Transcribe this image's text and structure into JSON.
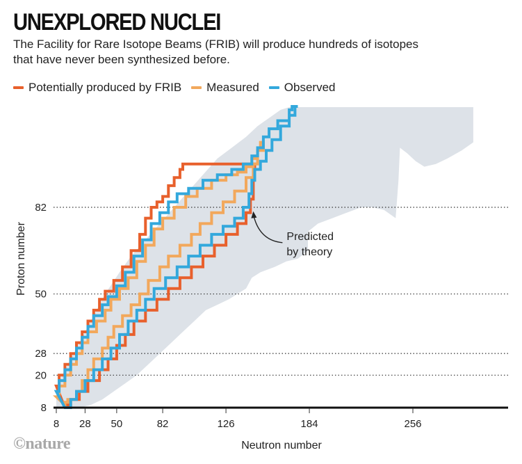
{
  "header": {
    "title": "UNEXPLORED NUCLEI",
    "subtitle": "The Facility for Rare Isotope Beams (FRIB) will produce hundreds of isotopes that have never been synthesized before."
  },
  "credit": "©nature",
  "colors": {
    "frib": "#e8602c",
    "measured": "#f2a85c",
    "observed": "#33a8dc",
    "predicted": "#dde2e8",
    "axis": "#111111",
    "gridline": "#333333",
    "annotation": "#222222"
  },
  "chart_data": {
    "type": "area",
    "title": "UNEXPLORED NUCLEI",
    "subtitle": "The Facility for Rare Isotope Beams (FRIB) will produce hundreds of isotopes that have never been synthesized before.",
    "xlabel": "Neutron number",
    "ylabel": "Proton number",
    "xlim": [
      0,
      310
    ],
    "ylim": [
      8,
      119
    ],
    "x_ticks": [
      8,
      28,
      50,
      82,
      126,
      184,
      256
    ],
    "y_ticks": [
      8,
      20,
      28,
      50,
      82
    ],
    "y_gridlines": [
      20,
      28,
      50,
      82
    ],
    "grid": "dotted horizontal at magic proton numbers",
    "legend": {
      "placement": "top-left",
      "entries": [
        {
          "key": "frib",
          "label": "Potentially produced by FRIB"
        },
        {
          "key": "measured",
          "label": "Measured"
        },
        {
          "key": "observed",
          "label": "Observed"
        }
      ]
    },
    "annotation": {
      "text_line1": "Predicted",
      "text_line2": "by theory",
      "points_to": [
        145,
        80
      ]
    },
    "series": [
      {
        "name": "Predicted by theory",
        "key": "predicted",
        "kind": "filled-region",
        "upper": [
          [
            8,
            9
          ],
          [
            8,
            14
          ],
          [
            12,
            20
          ],
          [
            18,
            26
          ],
          [
            26,
            34
          ],
          [
            34,
            42
          ],
          [
            42,
            50
          ],
          [
            52,
            58
          ],
          [
            60,
            64
          ],
          [
            70,
            70
          ],
          [
            80,
            76
          ],
          [
            90,
            82
          ],
          [
            100,
            88
          ],
          [
            110,
            94
          ],
          [
            120,
            100
          ],
          [
            130,
            104
          ],
          [
            140,
            108
          ],
          [
            148,
            112
          ],
          [
            156,
            115
          ],
          [
            164,
            118
          ],
          [
            170,
            119
          ],
          [
            298,
            119
          ]
        ],
        "lower": [
          [
            298,
            106
          ],
          [
            290,
            103
          ],
          [
            280,
            100
          ],
          [
            272,
            98
          ],
          [
            264,
            97
          ],
          [
            258,
            99
          ],
          [
            252,
            102
          ],
          [
            247,
            104
          ],
          [
            246,
            92
          ],
          [
            244,
            78
          ],
          [
            236,
            81
          ],
          [
            228,
            82
          ],
          [
            220,
            82
          ],
          [
            210,
            80
          ],
          [
            200,
            78
          ],
          [
            190,
            76
          ],
          [
            183,
            73
          ],
          [
            183,
            66
          ],
          [
            176,
            63
          ],
          [
            168,
            62
          ],
          [
            160,
            60
          ],
          [
            150,
            58
          ],
          [
            144,
            56
          ],
          [
            140,
            52
          ],
          [
            134,
            50
          ],
          [
            128,
            48
          ],
          [
            120,
            46
          ],
          [
            112,
            44
          ],
          [
            104,
            40
          ],
          [
            96,
            36
          ],
          [
            88,
            32
          ],
          [
            80,
            28
          ],
          [
            72,
            24
          ],
          [
            64,
            20
          ],
          [
            56,
            17
          ],
          [
            48,
            14
          ],
          [
            40,
            11
          ],
          [
            32,
            9
          ],
          [
            24,
            8
          ],
          [
            8,
            8
          ]
        ]
      },
      {
        "name": "Potentially produced by FRIB",
        "key": "frib",
        "kind": "closed-outline",
        "points": [
          [
            8,
            16
          ],
          [
            10,
            20
          ],
          [
            14,
            24
          ],
          [
            18,
            28
          ],
          [
            22,
            32
          ],
          [
            26,
            36
          ],
          [
            30,
            40
          ],
          [
            34,
            44
          ],
          [
            38,
            48
          ],
          [
            42,
            51
          ],
          [
            48,
            55
          ],
          [
            54,
            60
          ],
          [
            60,
            66
          ],
          [
            66,
            72
          ],
          [
            70,
            78
          ],
          [
            74,
            82
          ],
          [
            78,
            84
          ],
          [
            82,
            86
          ],
          [
            86,
            90
          ],
          [
            90,
            93
          ],
          [
            94,
            96
          ],
          [
            96,
            98
          ],
          [
            100,
            98
          ],
          [
            146,
            98
          ],
          [
            146,
            92
          ],
          [
            145,
            85
          ],
          [
            143,
            80
          ],
          [
            140,
            76
          ],
          [
            134,
            72
          ],
          [
            126,
            68
          ],
          [
            118,
            64
          ],
          [
            110,
            60
          ],
          [
            102,
            56
          ],
          [
            94,
            52
          ],
          [
            86,
            48
          ],
          [
            78,
            44
          ],
          [
            70,
            40
          ],
          [
            62,
            35
          ],
          [
            56,
            31
          ],
          [
            50,
            26
          ],
          [
            44,
            22
          ],
          [
            38,
            18
          ],
          [
            30,
            14
          ],
          [
            24,
            11
          ],
          [
            18,
            9
          ],
          [
            14,
            8
          ]
        ]
      },
      {
        "name": "Observed",
        "key": "observed",
        "kind": "closed-outline",
        "points": [
          [
            8,
            14
          ],
          [
            10,
            18
          ],
          [
            14,
            22
          ],
          [
            18,
            26
          ],
          [
            22,
            30
          ],
          [
            26,
            34
          ],
          [
            30,
            38
          ],
          [
            34,
            42
          ],
          [
            40,
            46
          ],
          [
            44,
            49
          ],
          [
            50,
            53
          ],
          [
            56,
            58
          ],
          [
            62,
            64
          ],
          [
            68,
            70
          ],
          [
            74,
            76
          ],
          [
            80,
            80
          ],
          [
            86,
            84
          ],
          [
            92,
            87
          ],
          [
            100,
            89
          ],
          [
            110,
            92
          ],
          [
            120,
            94
          ],
          [
            130,
            96
          ],
          [
            138,
            98
          ],
          [
            144,
            101
          ],
          [
            148,
            104
          ],
          [
            152,
            108
          ],
          [
            156,
            111
          ],
          [
            162,
            114
          ],
          [
            170,
            118
          ],
          [
            172,
            120
          ],
          [
            176,
            120
          ],
          [
            174,
            116
          ],
          [
            170,
            112
          ],
          [
            164,
            107
          ],
          [
            158,
            103
          ],
          [
            154,
            99
          ],
          [
            150,
            96
          ],
          [
            146,
            92
          ],
          [
            144,
            87
          ],
          [
            142,
            82
          ],
          [
            138,
            78
          ],
          [
            132,
            75
          ],
          [
            124,
            72
          ],
          [
            116,
            68
          ],
          [
            108,
            64
          ],
          [
            100,
            60
          ],
          [
            92,
            56
          ],
          [
            84,
            52
          ],
          [
            76,
            48
          ],
          [
            70,
            44
          ],
          [
            64,
            40
          ],
          [
            58,
            35
          ],
          [
            52,
            30
          ],
          [
            46,
            26
          ],
          [
            40,
            22
          ],
          [
            34,
            18
          ],
          [
            28,
            14
          ],
          [
            22,
            11
          ],
          [
            18,
            8
          ],
          [
            14,
            8
          ]
        ]
      },
      {
        "name": "Measured",
        "key": "measured",
        "kind": "closed-outline",
        "points": [
          [
            8,
            12
          ],
          [
            10,
            16
          ],
          [
            14,
            20
          ],
          [
            18,
            24
          ],
          [
            22,
            28
          ],
          [
            26,
            32
          ],
          [
            30,
            36
          ],
          [
            36,
            40
          ],
          [
            42,
            44
          ],
          [
            46,
            48
          ],
          [
            52,
            52
          ],
          [
            58,
            56
          ],
          [
            64,
            62
          ],
          [
            70,
            68
          ],
          [
            76,
            74
          ],
          [
            82,
            78
          ],
          [
            90,
            82
          ],
          [
            98,
            86
          ],
          [
            106,
            89
          ],
          [
            116,
            92
          ],
          [
            126,
            94
          ],
          [
            134,
            95
          ],
          [
            140,
            97
          ],
          [
            144,
            100
          ],
          [
            148,
            103
          ],
          [
            150,
            106
          ],
          [
            152,
            103
          ],
          [
            148,
            98
          ],
          [
            145,
            93
          ],
          [
            140,
            88
          ],
          [
            132,
            84
          ],
          [
            124,
            80
          ],
          [
            116,
            76
          ],
          [
            108,
            72
          ],
          [
            102,
            68
          ],
          [
            94,
            64
          ],
          [
            86,
            60
          ],
          [
            80,
            55
          ],
          [
            72,
            50
          ],
          [
            66,
            46
          ],
          [
            60,
            42
          ],
          [
            54,
            38
          ],
          [
            48,
            34
          ],
          [
            44,
            30
          ],
          [
            40,
            26
          ],
          [
            34,
            22
          ],
          [
            30,
            18
          ],
          [
            26,
            14
          ],
          [
            22,
            11
          ],
          [
            16,
            10
          ],
          [
            14,
            9
          ]
        ]
      }
    ]
  }
}
